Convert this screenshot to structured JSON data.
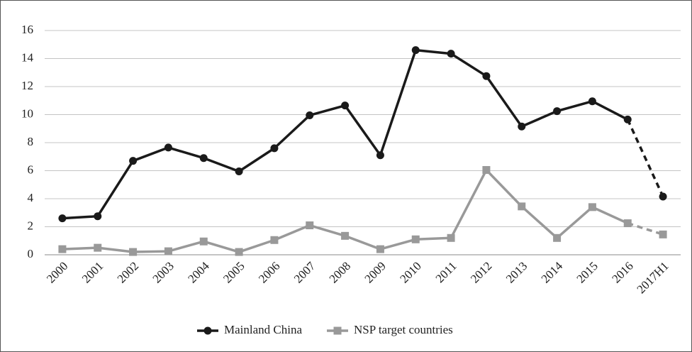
{
  "chart_data": {
    "type": "line",
    "categories": [
      "2000",
      "2001",
      "2002",
      "2003",
      "2004",
      "2005",
      "2006",
      "2007",
      "2008",
      "2009",
      "2010",
      "2011",
      "2012",
      "2013",
      "2014",
      "2015",
      "2016",
      "2017H1"
    ],
    "series": [
      {
        "name": "Mainland China",
        "color": "#1a1a1a",
        "marker": "circle",
        "values": [
          2.6,
          2.75,
          6.7,
          7.65,
          6.9,
          5.95,
          7.6,
          9.95,
          10.65,
          7.1,
          14.6,
          14.35,
          12.75,
          9.15,
          10.25,
          10.95,
          9.65,
          4.15
        ]
      },
      {
        "name": "NSP target countries",
        "color": "#999999",
        "marker": "square",
        "values": [
          0.4,
          0.5,
          0.2,
          0.25,
          0.95,
          0.2,
          1.05,
          2.1,
          1.35,
          0.4,
          1.1,
          1.2,
          6.05,
          3.45,
          1.2,
          3.4,
          2.25,
          1.45
        ]
      }
    ],
    "ylim": [
      0,
      16
    ],
    "yticks": [
      0,
      2,
      4,
      6,
      8,
      10,
      12,
      14,
      16
    ],
    "grid": true,
    "dashed_last_segment": true,
    "legend": "bottom"
  }
}
